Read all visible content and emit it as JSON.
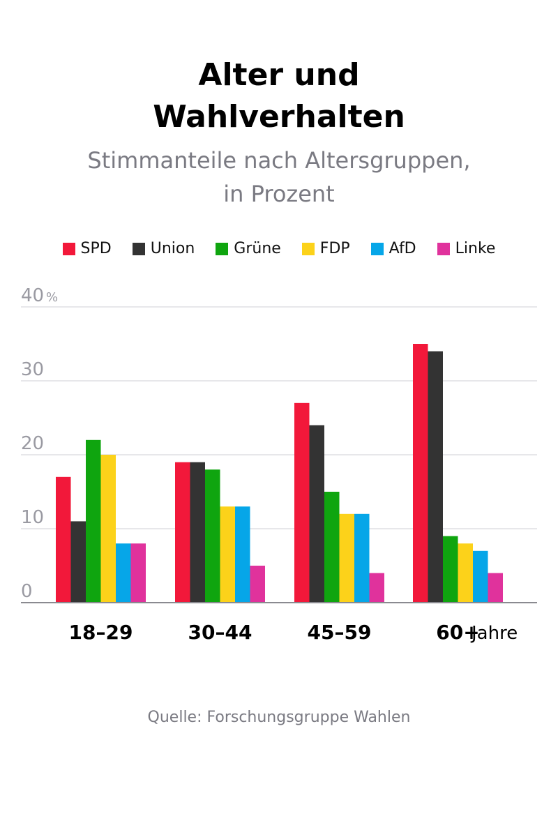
{
  "title_lines": [
    "Alter und",
    "Wahlverhalten"
  ],
  "subtitle_lines": [
    "Stimmanteile nach Altersgruppen,",
    "in Prozent"
  ],
  "source": "Quelle: Forschungsgruppe Wahlen",
  "chart_data": {
    "type": "bar",
    "title": "Alter und Wahlverhalten",
    "subtitle": "Stimmanteile nach Altersgruppen, in Prozent",
    "categories": [
      "18–29",
      "30–44",
      "45–59",
      "60+"
    ],
    "x_unit_label": "Jahre",
    "y_unit_label": "%",
    "ylim": [
      0,
      40
    ],
    "yticks": [
      0,
      10,
      20,
      30,
      40
    ],
    "grid": true,
    "legend_position": "top",
    "series": [
      {
        "name": "SPD",
        "color": "#f2183a",
        "values": [
          17,
          19,
          27,
          35
        ]
      },
      {
        "name": "Union",
        "color": "#333333",
        "values": [
          11,
          19,
          24,
          34
        ]
      },
      {
        "name": "Grüne",
        "color": "#0fa50f",
        "values": [
          22,
          18,
          15,
          9
        ]
      },
      {
        "name": "FDP",
        "color": "#fcd21a",
        "values": [
          20,
          13,
          12,
          8
        ]
      },
      {
        "name": "AfD",
        "color": "#06a6e8",
        "values": [
          8,
          13,
          12,
          7
        ]
      },
      {
        "name": "Linke",
        "color": "#e0329c",
        "values": [
          8,
          5,
          4,
          4
        ]
      }
    ]
  }
}
